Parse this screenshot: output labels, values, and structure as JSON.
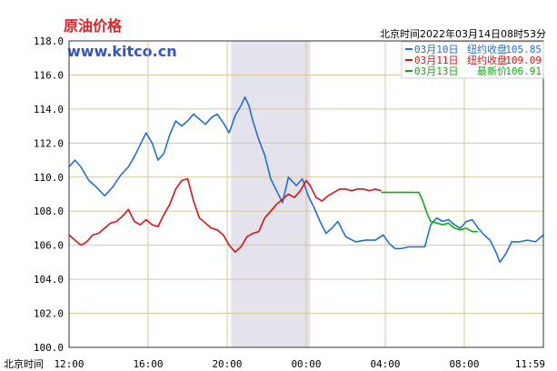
{
  "chart_data": {
    "type": "line",
    "title": "原油价格",
    "site": "www.kitco.cn",
    "timestamp": "北京时间2022年03月14日08时53分",
    "xlabel": "北京时间",
    "x_ticks": [
      "12:00",
      "16:00",
      "20:00",
      "00:00",
      "04:00",
      "08:00",
      "11:59"
    ],
    "x_tick_hours": [
      0,
      4,
      8,
      12,
      16,
      20,
      24
    ],
    "y_ticks": [
      "100.0",
      "102.0",
      "104.0",
      "106.0",
      "108.0",
      "110.0",
      "112.0",
      "114.0",
      "116.0",
      "118.0"
    ],
    "ylim": [
      100,
      118
    ],
    "xlim_hours": [
      0,
      24
    ],
    "shaded_hours": [
      8.2,
      12.2
    ],
    "grid": true,
    "legend_position": "top-right",
    "series": [
      {
        "name": "03月10日",
        "legend_label": "纽约收盘",
        "legend_value": "105.85",
        "color": "#1f6fd8",
        "points": [
          [
            0,
            110.6
          ],
          [
            0.3,
            111.0
          ],
          [
            0.6,
            110.6
          ],
          [
            1.0,
            109.8
          ],
          [
            1.4,
            109.4
          ],
          [
            1.8,
            108.9
          ],
          [
            2.2,
            109.4
          ],
          [
            2.6,
            110.1
          ],
          [
            3.0,
            110.6
          ],
          [
            3.3,
            111.2
          ],
          [
            3.6,
            111.9
          ],
          [
            3.9,
            112.6
          ],
          [
            4.2,
            112.0
          ],
          [
            4.5,
            111.0
          ],
          [
            4.8,
            111.4
          ],
          [
            5.1,
            112.5
          ],
          [
            5.4,
            113.3
          ],
          [
            5.7,
            113.0
          ],
          [
            6.0,
            113.3
          ],
          [
            6.3,
            113.7
          ],
          [
            6.6,
            113.4
          ],
          [
            6.9,
            113.1
          ],
          [
            7.2,
            113.5
          ],
          [
            7.5,
            113.7
          ],
          [
            7.8,
            113.2
          ],
          [
            8.1,
            112.6
          ],
          [
            8.4,
            113.6
          ],
          [
            8.7,
            114.2
          ],
          [
            8.9,
            114.7
          ],
          [
            9.1,
            114.2
          ],
          [
            9.3,
            113.3
          ],
          [
            9.6,
            112.2
          ],
          [
            9.9,
            111.3
          ],
          [
            10.2,
            109.9
          ],
          [
            10.5,
            109.2
          ],
          [
            10.8,
            108.5
          ],
          [
            11.1,
            110.0
          ],
          [
            11.5,
            109.5
          ],
          [
            11.8,
            109.9
          ],
          [
            12.1,
            108.9
          ],
          [
            12.4,
            108.2
          ],
          [
            12.7,
            107.4
          ],
          [
            13.0,
            106.7
          ],
          [
            13.3,
            107.0
          ],
          [
            13.6,
            107.4
          ],
          [
            14.0,
            106.5
          ],
          [
            14.5,
            106.2
          ],
          [
            15.0,
            106.3
          ],
          [
            15.5,
            106.3
          ],
          [
            15.9,
            106.6
          ],
          [
            16.2,
            106.1
          ],
          [
            16.5,
            105.8
          ],
          [
            16.8,
            105.8
          ],
          [
            17.2,
            105.9
          ],
          [
            17.6,
            105.9
          ],
          [
            18.0,
            105.9
          ],
          [
            18.3,
            107.2
          ],
          [
            18.6,
            107.6
          ],
          [
            18.9,
            107.4
          ],
          [
            19.2,
            107.5
          ],
          [
            19.5,
            107.2
          ],
          [
            19.8,
            107.0
          ],
          [
            20.1,
            107.4
          ],
          [
            20.4,
            107.5
          ],
          [
            20.7,
            107.0
          ],
          [
            21.0,
            106.6
          ],
          [
            21.3,
            106.3
          ],
          [
            21.6,
            105.6
          ],
          [
            21.8,
            105.0
          ],
          [
            22.1,
            105.5
          ],
          [
            22.4,
            106.2
          ],
          [
            22.8,
            106.2
          ],
          [
            23.2,
            106.3
          ],
          [
            23.6,
            106.2
          ],
          [
            24.0,
            106.6
          ]
        ]
      },
      {
        "name": "03月11日",
        "legend_label": "纽约收盘",
        "legend_value": "109.09",
        "color": "#dd1111",
        "points": [
          [
            0,
            106.6
          ],
          [
            0.3,
            106.3
          ],
          [
            0.6,
            106.0
          ],
          [
            0.9,
            106.2
          ],
          [
            1.2,
            106.6
          ],
          [
            1.5,
            106.7
          ],
          [
            1.8,
            107.0
          ],
          [
            2.1,
            107.3
          ],
          [
            2.4,
            107.4
          ],
          [
            2.7,
            107.7
          ],
          [
            3.0,
            108.1
          ],
          [
            3.3,
            107.4
          ],
          [
            3.6,
            107.2
          ],
          [
            3.9,
            107.5
          ],
          [
            4.2,
            107.2
          ],
          [
            4.5,
            107.1
          ],
          [
            4.8,
            107.8
          ],
          [
            5.1,
            108.4
          ],
          [
            5.4,
            109.3
          ],
          [
            5.7,
            109.8
          ],
          [
            6.0,
            109.9
          ],
          [
            6.3,
            108.6
          ],
          [
            6.6,
            107.6
          ],
          [
            6.9,
            107.3
          ],
          [
            7.2,
            107.0
          ],
          [
            7.5,
            106.9
          ],
          [
            7.8,
            106.6
          ],
          [
            8.1,
            106.0
          ],
          [
            8.4,
            105.6
          ],
          [
            8.7,
            105.9
          ],
          [
            9.0,
            106.5
          ],
          [
            9.3,
            106.7
          ],
          [
            9.6,
            106.8
          ],
          [
            9.9,
            107.6
          ],
          [
            10.2,
            108.0
          ],
          [
            10.5,
            108.4
          ],
          [
            10.8,
            108.7
          ],
          [
            11.1,
            109.0
          ],
          [
            11.4,
            108.8
          ],
          [
            11.7,
            109.2
          ],
          [
            12.0,
            109.8
          ],
          [
            12.2,
            109.5
          ],
          [
            12.5,
            108.8
          ],
          [
            12.8,
            108.6
          ],
          [
            13.1,
            108.9
          ],
          [
            13.4,
            109.1
          ],
          [
            13.7,
            109.3
          ],
          [
            14.0,
            109.3
          ],
          [
            14.3,
            109.2
          ],
          [
            14.6,
            109.3
          ],
          [
            14.9,
            109.3
          ],
          [
            15.2,
            109.2
          ],
          [
            15.5,
            109.3
          ],
          [
            15.8,
            109.2
          ]
        ]
      },
      {
        "name": "03月13日",
        "legend_label": "最新价",
        "legend_value": "106.91",
        "color": "#11aa11",
        "points": [
          [
            15.8,
            109.1
          ],
          [
            16.2,
            109.1
          ],
          [
            16.6,
            109.1
          ],
          [
            17.0,
            109.1
          ],
          [
            17.4,
            109.1
          ],
          [
            17.7,
            109.1
          ],
          [
            17.9,
            108.6
          ],
          [
            18.1,
            107.9
          ],
          [
            18.3,
            107.4
          ],
          [
            18.6,
            107.3
          ],
          [
            18.9,
            107.2
          ],
          [
            19.2,
            107.3
          ],
          [
            19.5,
            107.0
          ],
          [
            19.8,
            106.9
          ],
          [
            20.1,
            107.0
          ],
          [
            20.4,
            106.8
          ],
          [
            20.7,
            106.8
          ]
        ]
      }
    ]
  }
}
